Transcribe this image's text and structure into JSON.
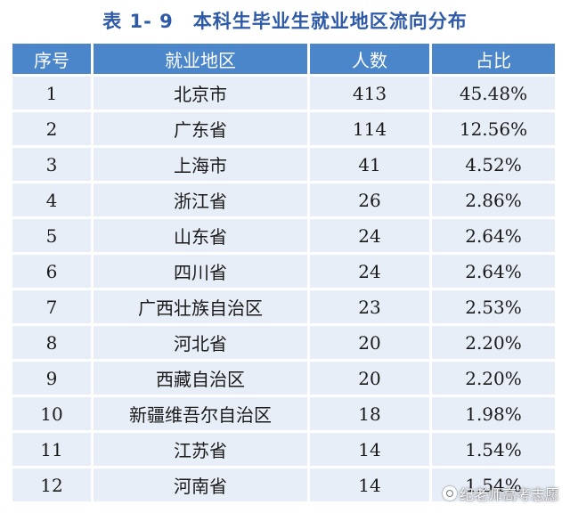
{
  "caption": {
    "number": "表 1- 9",
    "title": "本科生毕业生就业地区流向分布"
  },
  "table": {
    "headers": [
      "序号",
      "就业地区",
      "人数",
      "占比"
    ],
    "rows": [
      [
        "1",
        "北京市",
        "413",
        "45.48%"
      ],
      [
        "2",
        "广东省",
        "114",
        "12.56%"
      ],
      [
        "3",
        "上海市",
        "41",
        "4.52%"
      ],
      [
        "4",
        "浙江省",
        "26",
        "2.86%"
      ],
      [
        "5",
        "山东省",
        "24",
        "2.64%"
      ],
      [
        "6",
        "四川省",
        "24",
        "2.64%"
      ],
      [
        "7",
        "广西壮族自治区",
        "23",
        "2.53%"
      ],
      [
        "8",
        "河北省",
        "20",
        "2.20%"
      ],
      [
        "9",
        "西藏自治区",
        "20",
        "2.20%"
      ],
      [
        "10",
        "新疆维吾尔自治区",
        "18",
        "1.98%"
      ],
      [
        "11",
        "江苏省",
        "14",
        "1.54%"
      ],
      [
        "12",
        "河南省",
        "14",
        "1.54%"
      ]
    ]
  },
  "watermark": {
    "text": "纪老师高考志愿",
    "icon": "logo-icon"
  }
}
